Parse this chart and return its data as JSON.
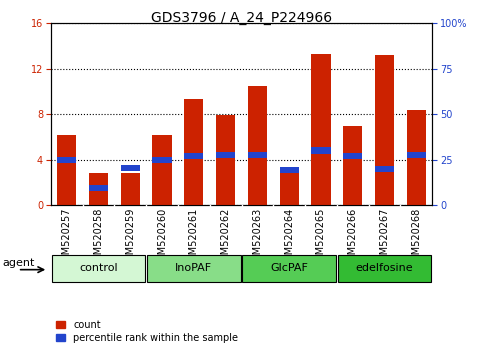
{
  "title": "GDS3796 / A_24_P224966",
  "samples": [
    "GSM520257",
    "GSM520258",
    "GSM520259",
    "GSM520260",
    "GSM520261",
    "GSM520262",
    "GSM520263",
    "GSM520264",
    "GSM520265",
    "GSM520266",
    "GSM520267",
    "GSM520268"
  ],
  "red_values": [
    6.2,
    2.8,
    2.8,
    6.2,
    9.3,
    7.9,
    10.5,
    3.3,
    13.3,
    7.0,
    13.2,
    8.4
  ],
  "blue_pct": [
    25.0,
    9.4,
    20.6,
    25.0,
    26.9,
    27.5,
    27.5,
    19.4,
    30.0,
    26.9,
    20.0,
    27.5
  ],
  "groups": [
    {
      "label": "control",
      "start": 0,
      "end": 3,
      "color": "#d4f7d4"
    },
    {
      "label": "InoPAF",
      "start": 3,
      "end": 6,
      "color": "#88dd88"
    },
    {
      "label": "GlcPAF",
      "start": 6,
      "end": 9,
      "color": "#55cc55"
    },
    {
      "label": "edelfosine",
      "start": 9,
      "end": 12,
      "color": "#33bb33"
    }
  ],
  "ylim_left": [
    0,
    16
  ],
  "ylim_right": [
    0,
    100
  ],
  "yticks_left": [
    0,
    4,
    8,
    12,
    16
  ],
  "yticks_right": [
    0,
    25,
    50,
    75,
    100
  ],
  "red_color": "#cc2200",
  "blue_color": "#2244cc",
  "bar_width": 0.6,
  "xtick_bg_color": "#bbbbbb",
  "agent_label": "agent",
  "legend_count": "count",
  "legend_pct": "percentile rank within the sample",
  "title_fontsize": 10,
  "tick_fontsize": 7,
  "group_label_fontsize": 8
}
